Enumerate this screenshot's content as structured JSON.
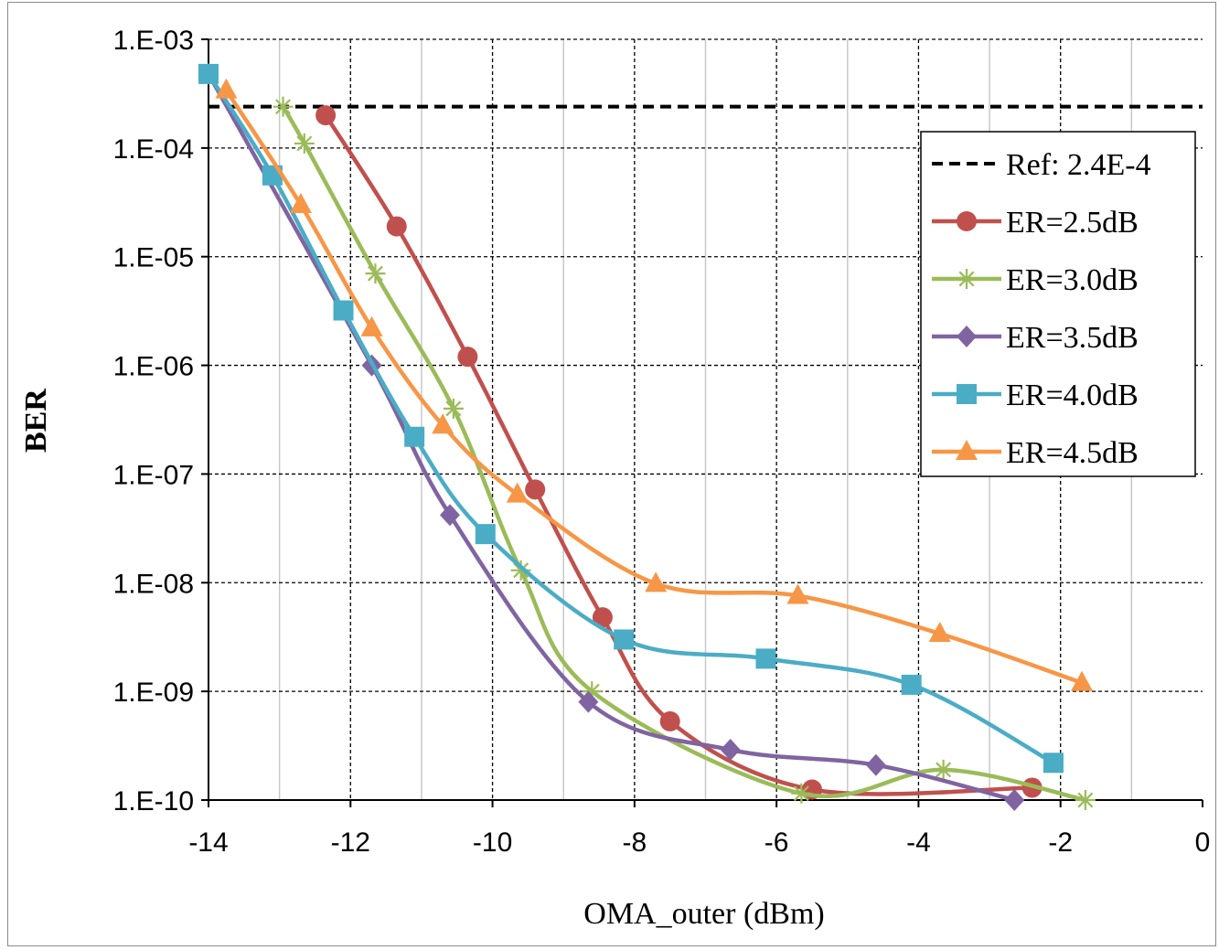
{
  "chart_data": {
    "type": "line",
    "title": "",
    "xlabel": "OMA_outer (dBm)",
    "ylabel": "BER",
    "xlim": [
      -14,
      0
    ],
    "ylim": [
      1e-10,
      0.001
    ],
    "yscale": "log",
    "grid": true,
    "legend_position": "top-right",
    "x_ticks": [
      "-14",
      "-12",
      "-10",
      "-8",
      "-6",
      "-4",
      "-2",
      "0"
    ],
    "y_ticks": [
      "1.E-10",
      "1.E-09",
      "1.E-08",
      "1.E-07",
      "1.E-06",
      "1.E-05",
      "1.E-04",
      "1.E-03"
    ],
    "reference": {
      "name": "Ref: 2.4E-4",
      "value": 0.00024,
      "color": "#000000"
    },
    "series": [
      {
        "name": "ER=2.5dB",
        "color": "#C0504D",
        "marker": "circle",
        "x": [
          -12.35,
          -11.35,
          -10.35,
          -9.4,
          -8.45,
          -7.5,
          -5.5,
          -2.4
        ],
        "y": [
          0.0002,
          1.9e-05,
          1.2e-06,
          7.2e-08,
          4.8e-09,
          5.3e-10,
          1.25e-10,
          1.3e-10
        ]
      },
      {
        "name": "ER=3.0dB",
        "color": "#9BBB59",
        "marker": "star",
        "x": [
          -12.95,
          -12.65,
          -11.65,
          -10.55,
          -9.6,
          -8.6,
          -5.65,
          -3.65,
          -1.65
        ],
        "y": [
          0.00024,
          0.00011,
          7e-06,
          4e-07,
          1.3e-08,
          1e-09,
          1.15e-10,
          1.9e-10,
          1e-10
        ]
      },
      {
        "name": "ER=3.5dB",
        "color": "#8064A2",
        "marker": "diamond",
        "x": [
          -14.0,
          -11.7,
          -10.6,
          -8.65,
          -6.65,
          -4.6,
          -2.65
        ],
        "y": [
          0.00048,
          1e-06,
          4.2e-08,
          8e-10,
          2.9e-10,
          2.1e-10,
          1e-10
        ]
      },
      {
        "name": "ER=4.0dB",
        "color": "#4BACC6",
        "marker": "square",
        "x": [
          -14.0,
          -13.1,
          -12.1,
          -11.1,
          -10.1,
          -8.15,
          -6.15,
          -4.1,
          -2.1
        ],
        "y": [
          0.00048,
          5.6e-05,
          3.2e-06,
          2.2e-07,
          2.8e-08,
          3e-09,
          2e-09,
          1.15e-09,
          2.2e-10
        ]
      },
      {
        "name": "ER=4.5dB",
        "color": "#F79646",
        "marker": "triangle",
        "x": [
          -13.75,
          -12.7,
          -11.7,
          -10.7,
          -9.65,
          -7.7,
          -5.7,
          -3.7,
          -1.7
        ],
        "y": [
          0.00034,
          3e-05,
          2.2e-06,
          2.8e-07,
          6.5e-08,
          9.8e-09,
          7.6e-09,
          3.4e-09,
          1.2e-09
        ]
      }
    ]
  }
}
